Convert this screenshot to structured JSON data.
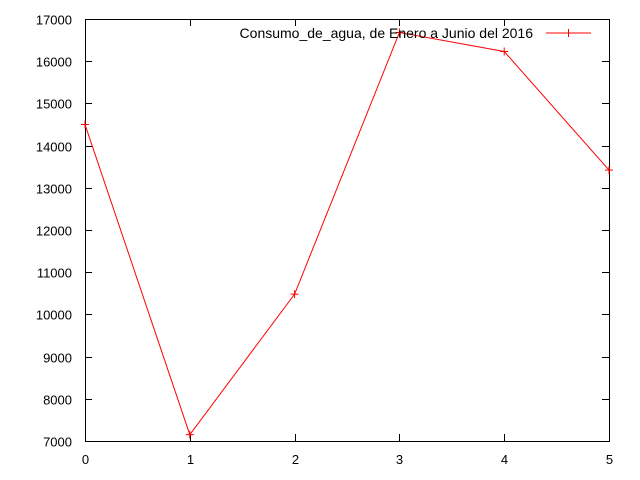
{
  "chart_data": {
    "type": "line",
    "title": "",
    "xlabel": "",
    "ylabel": "",
    "x": [
      0,
      1,
      2,
      3,
      4,
      5
    ],
    "xlim": [
      0,
      5
    ],
    "ylim": [
      7000,
      17000
    ],
    "xticks": [
      "0",
      "1",
      "2",
      "3",
      "4",
      "5"
    ],
    "yticks": [
      "7000",
      "8000",
      "9000",
      "10000",
      "11000",
      "12000",
      "13000",
      "14000",
      "15000",
      "16000",
      "17000"
    ],
    "grid": false,
    "legend_position": "top-right",
    "series": [
      {
        "name": "Consumo_de_agua, de Enero a Junio del 2016",
        "color": "#ff0000",
        "marker": "plus",
        "values": [
          14500,
          7150,
          10480,
          16680,
          16230,
          13420
        ]
      }
    ]
  }
}
